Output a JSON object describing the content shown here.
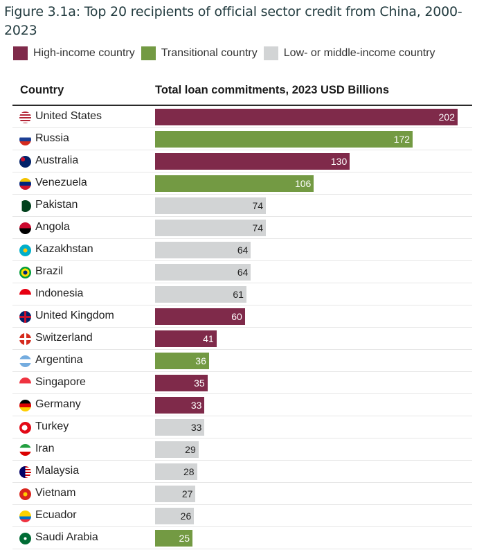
{
  "title": "Figure 3.1a: Top 20 recipients of official sector credit from China, 2000-2023",
  "colors": {
    "high": "#7f2a4a",
    "transitional": "#739a43",
    "low": "#d2d4d5",
    "label_light": "#ffffff",
    "label_dark": "#222222"
  },
  "legend": [
    {
      "key": "high",
      "label": "High-income country"
    },
    {
      "key": "transitional",
      "label": "Transitional country"
    },
    {
      "key": "low",
      "label": "Low- or middle-income country"
    }
  ],
  "header": {
    "country": "Country",
    "value": "Total loan commitments, 2023 USD Billions"
  },
  "chart_data": {
    "type": "bar",
    "orientation": "horizontal",
    "title": "Figure 3.1a: Top 20 recipients of official sector credit from China, 2000-2023",
    "xlabel": "Total loan commitments, 2023 USD Billions",
    "ylabel": "Country",
    "xlim": [
      0,
      202
    ],
    "categories": [
      "United States",
      "Russia",
      "Australia",
      "Venezuela",
      "Pakistan",
      "Angola",
      "Kazakhstan",
      "Brazil",
      "Indonesia",
      "United Kingdom",
      "Switzerland",
      "Argentina",
      "Singapore",
      "Germany",
      "Turkey",
      "Iran",
      "Malaysia",
      "Vietnam",
      "Ecuador",
      "Saudi Arabia"
    ],
    "values": [
      202,
      172,
      130,
      106,
      74,
      74,
      64,
      64,
      61,
      60,
      41,
      36,
      35,
      33,
      33,
      29,
      28,
      27,
      26,
      25
    ],
    "groups": [
      "high",
      "transitional",
      "high",
      "transitional",
      "low",
      "low",
      "low",
      "low",
      "low",
      "high",
      "high",
      "transitional",
      "high",
      "high",
      "low",
      "low",
      "low",
      "low",
      "low",
      "transitional"
    ],
    "flags": [
      "us-flag-icon",
      "russia-flag-icon",
      "australia-flag-icon",
      "venezuela-flag-icon",
      "pakistan-flag-icon",
      "angola-flag-icon",
      "kazakhstan-flag-icon",
      "brazil-flag-icon",
      "indonesia-flag-icon",
      "uk-flag-icon",
      "switzerland-flag-icon",
      "argentina-flag-icon",
      "singapore-flag-icon",
      "germany-flag-icon",
      "turkey-flag-icon",
      "iran-flag-icon",
      "malaysia-flag-icon",
      "vietnam-flag-icon",
      "ecuador-flag-icon",
      "saudi-arabia-flag-icon"
    ],
    "legend_position": "top-left",
    "grid": false
  }
}
